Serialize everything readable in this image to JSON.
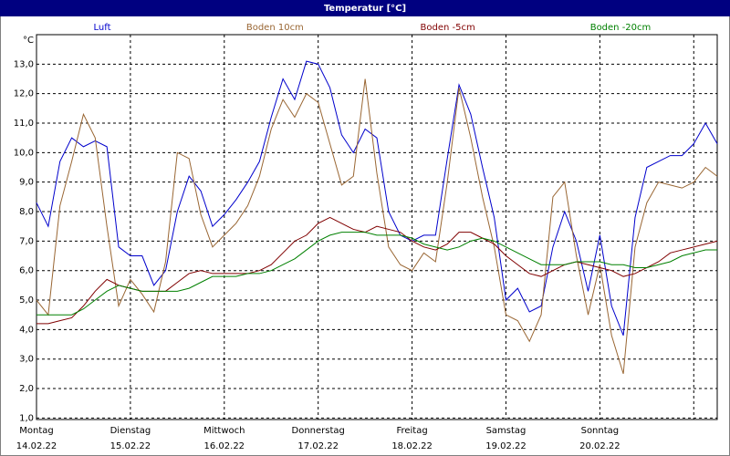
{
  "chart_data": {
    "type": "line",
    "title": "Temperatur [°C]",
    "y_unit": "°C",
    "x": [
      0,
      3,
      6,
      9,
      12,
      15,
      18,
      21,
      24,
      27,
      30,
      33,
      36,
      39,
      42,
      45,
      48,
      51,
      54,
      57,
      60,
      63,
      66,
      69,
      72,
      75,
      78,
      81,
      84,
      87,
      90,
      93,
      96,
      99,
      102,
      105,
      108,
      111,
      114,
      117,
      120,
      123,
      126,
      129,
      132,
      135,
      138,
      141,
      144,
      147,
      150,
      153,
      156,
      159,
      162,
      165,
      168,
      171,
      174
    ],
    "xlim": [
      0,
      174
    ],
    "xticks": [
      {
        "value": 0,
        "label": "Montag",
        "date": "14.02.22"
      },
      {
        "value": 24,
        "label": "Dienstag",
        "date": "15.02.22"
      },
      {
        "value": 48,
        "label": "Mittwoch",
        "date": "16.02.22"
      },
      {
        "value": 72,
        "label": "Donnerstag",
        "date": "17.02.22"
      },
      {
        "value": 96,
        "label": "Freitag",
        "date": "18.02.22"
      },
      {
        "value": 120,
        "label": "Samstag",
        "date": "19.02.22"
      },
      {
        "value": 144,
        "label": "Sonntag",
        "date": "20.02.22"
      },
      {
        "value": 168,
        "label": null,
        "date": null
      }
    ],
    "ylim": [
      0.95,
      14
    ],
    "yticks": [
      {
        "value": 1,
        "label": "1,0"
      },
      {
        "value": 2,
        "label": "2,0"
      },
      {
        "value": 3,
        "label": "3,0"
      },
      {
        "value": 4,
        "label": "4,0"
      },
      {
        "value": 5,
        "label": "5,0"
      },
      {
        "value": 6,
        "label": "6,0"
      },
      {
        "value": 7,
        "label": "7,0"
      },
      {
        "value": 8,
        "label": "8,0"
      },
      {
        "value": 9,
        "label": "9,0"
      },
      {
        "value": 10,
        "label": "10,0"
      },
      {
        "value": 11,
        "label": "11,0"
      },
      {
        "value": 12,
        "label": "12,0"
      },
      {
        "value": 13,
        "label": "13,0"
      }
    ],
    "grid": true,
    "series": [
      {
        "name": "Luft",
        "color": "#0000cc",
        "values": [
          8.3,
          7.5,
          9.7,
          10.5,
          10.2,
          10.4,
          10.2,
          6.8,
          6.5,
          6.5,
          5.5,
          6.0,
          8.0,
          9.2,
          8.7,
          7.5,
          7.9,
          8.4,
          9.0,
          9.7,
          11.2,
          12.5,
          11.8,
          13.1,
          13.0,
          12.2,
          10.6,
          10.0,
          10.8,
          10.5,
          8.0,
          7.2,
          7.0,
          7.2,
          7.2,
          9.8,
          12.3,
          11.3,
          9.5,
          7.8,
          5.0,
          5.4,
          4.6,
          4.8,
          6.8,
          8.0,
          7.0,
          5.3,
          7.2,
          4.8,
          3.8,
          7.8,
          9.5,
          9.7,
          9.9,
          9.9,
          10.3,
          11.0,
          10.3
        ]
      },
      {
        "name": "Boden 10cm",
        "color": "#996633",
        "values": [
          5.0,
          4.5,
          8.2,
          9.7,
          11.3,
          10.5,
          7.5,
          4.8,
          5.7,
          5.2,
          4.6,
          6.3,
          10.0,
          9.8,
          7.9,
          6.8,
          7.2,
          7.6,
          8.2,
          9.2,
          10.8,
          11.8,
          11.2,
          12.0,
          11.7,
          10.3,
          8.9,
          9.2,
          12.5,
          9.3,
          6.8,
          6.2,
          6.0,
          6.6,
          6.3,
          9.0,
          12.2,
          10.5,
          8.5,
          6.8,
          4.5,
          4.3,
          3.6,
          4.5,
          8.5,
          9.0,
          6.5,
          4.5,
          6.2,
          3.8,
          2.5,
          6.8,
          8.3,
          9.0,
          8.9,
          8.8,
          9.0,
          9.5,
          9.2
        ]
      },
      {
        "name": "Boden -5cm",
        "color": "#800000",
        "values": [
          4.2,
          4.2,
          4.3,
          4.4,
          4.8,
          5.3,
          5.7,
          5.5,
          5.4,
          5.3,
          5.3,
          5.3,
          5.6,
          5.9,
          6.0,
          5.9,
          5.9,
          5.9,
          5.9,
          6.0,
          6.2,
          6.6,
          7.0,
          7.2,
          7.6,
          7.8,
          7.6,
          7.4,
          7.3,
          7.5,
          7.4,
          7.3,
          7.0,
          6.8,
          6.7,
          6.9,
          7.3,
          7.3,
          7.1,
          6.9,
          6.5,
          6.2,
          5.9,
          5.8,
          6.0,
          6.2,
          6.3,
          6.2,
          6.1,
          6.0,
          5.8,
          5.9,
          6.1,
          6.3,
          6.6,
          6.7,
          6.8,
          6.9,
          7.0
        ]
      },
      {
        "name": "Boden -20cm",
        "color": "#008000",
        "values": [
          4.5,
          4.5,
          4.5,
          4.5,
          4.7,
          5.0,
          5.3,
          5.5,
          5.4,
          5.3,
          5.3,
          5.3,
          5.3,
          5.4,
          5.6,
          5.8,
          5.8,
          5.8,
          5.9,
          5.9,
          6.0,
          6.2,
          6.4,
          6.7,
          7.0,
          7.2,
          7.3,
          7.3,
          7.3,
          7.2,
          7.2,
          7.2,
          7.1,
          6.9,
          6.8,
          6.7,
          6.8,
          7.0,
          7.1,
          7.0,
          6.8,
          6.6,
          6.4,
          6.2,
          6.2,
          6.2,
          6.3,
          6.3,
          6.3,
          6.2,
          6.2,
          6.1,
          6.1,
          6.2,
          6.3,
          6.5,
          6.6,
          6.7,
          6.7
        ]
      }
    ]
  }
}
